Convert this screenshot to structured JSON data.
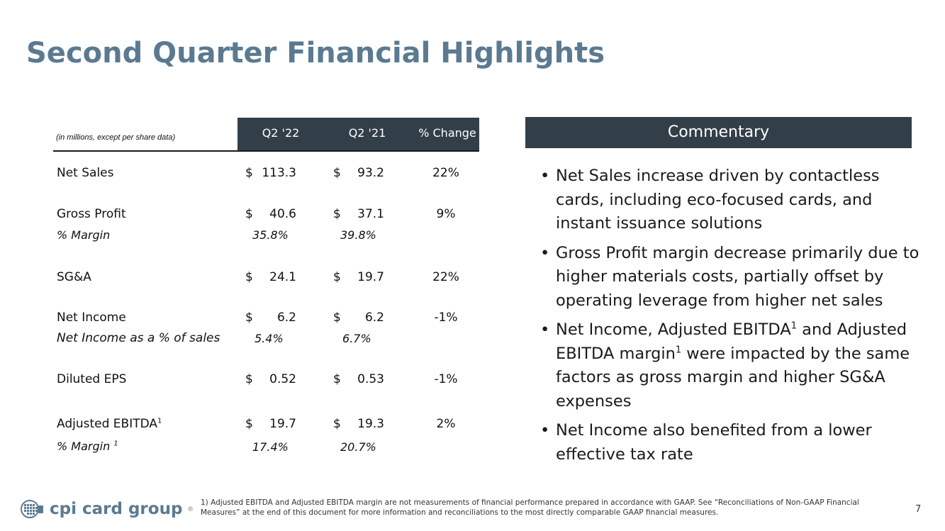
{
  "title": "Second Quarter Financial Highlights",
  "table": {
    "units_note": "(in millions, except per share data)",
    "columns": [
      "Q2 '22",
      "Q2 '21",
      "% Change"
    ],
    "rows": [
      {
        "label": "Net Sales",
        "cur1": "$",
        "v1": "113.3",
        "cur2": "$",
        "v2": "93.2",
        "pct": "22%"
      },
      {
        "label": "Gross Profit",
        "cur1": "$",
        "v1": "40.6",
        "cur2": "$",
        "v2": "37.1",
        "pct": "9%",
        "sub_label": "% Margin",
        "sub1": "35.8%",
        "sub2": "39.8%"
      },
      {
        "label": "SG&A",
        "cur1": "$",
        "v1": "24.1",
        "cur2": "$",
        "v2": "19.7",
        "pct": "22%"
      },
      {
        "label": "Net Income",
        "cur1": "$",
        "v1": "6.2",
        "cur2": "$",
        "v2": "6.2",
        "pct": "-1%",
        "sub_label": "Net Income as a % of sales",
        "sub1": "5.4%",
        "sub2": "6.7%"
      },
      {
        "label": "Diluted EPS",
        "cur1": "$",
        "v1": "0.52",
        "cur2": "$",
        "v2": "0.53",
        "pct": "-1%"
      },
      {
        "label": "Adjusted EBITDA",
        "label_sup": "1",
        "cur1": "$",
        "v1": "19.7",
        "cur2": "$",
        "v2": "19.3",
        "pct": "2%",
        "sub_label": "% Margin",
        "sub_label_sup": "1",
        "sub1": "17.4%",
        "sub2": "20.7%"
      }
    ]
  },
  "commentary": {
    "heading": "Commentary",
    "bullet_char": "•",
    "b1": "Net Sales increase driven by contactless cards, including eco-focused cards, and instant issuance solutions",
    "b2": "Gross Profit margin decrease primarily due to higher materials costs, partially offset by operating leverage from higher net sales",
    "b3_a": "Net Income, Adjusted EBITDA",
    "b3_sup1": "1",
    "b3_b": " and Adjusted EBITDA margin",
    "b3_sup2": "1",
    "b3_c": " were impacted by the same factors as gross margin and higher SG&A expenses",
    "b4": "Net Income also benefited from a lower effective tax rate"
  },
  "footer": {
    "logo_text": "cpi card group",
    "logo_reg": "®",
    "footnote": "1) Adjusted EBITDA and Adjusted EBITDA margin are not measurements of financial performance prepared in accordance with GAAP. See “Reconciliations of Non-GAAP Financial Measures” at the end of this document for more information and reconciliations to the most directly comparable GAAP financial measures.",
    "page_number": "7"
  },
  "colors": {
    "title": "#5b7a91",
    "header_band": "#333f48"
  }
}
